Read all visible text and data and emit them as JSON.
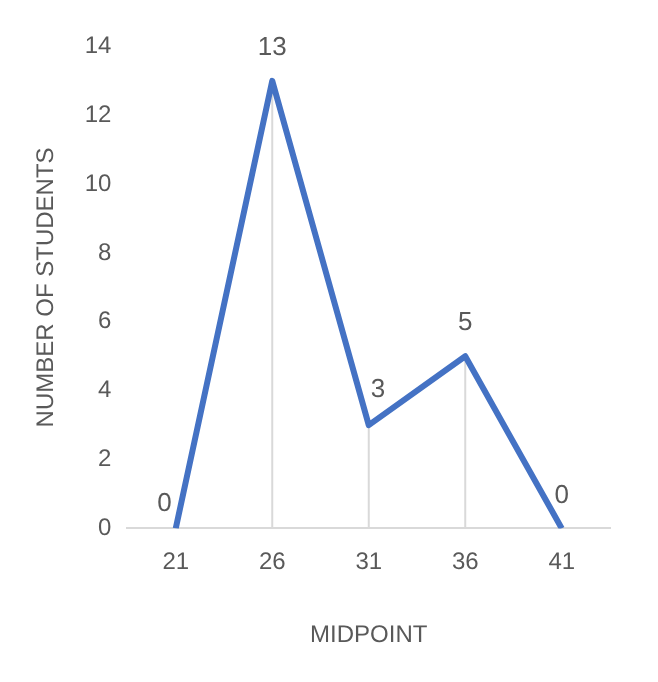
{
  "chart_data": {
    "type": "line",
    "xlabel": "MIDPOINT",
    "ylabel": "NUMBER OF STUDENTS",
    "categories": [
      "21",
      "26",
      "31",
      "36",
      "41"
    ],
    "series": [
      {
        "color": "#4472c4",
        "values": [
          0,
          13,
          3,
          5,
          0
        ]
      }
    ],
    "ylim": [
      0,
      14
    ],
    "yticks": [
      0,
      2,
      4,
      6,
      8,
      10,
      12,
      14
    ],
    "grid": "x",
    "legend": false,
    "data_labels": true,
    "marker": "none",
    "line_style": "solid"
  }
}
